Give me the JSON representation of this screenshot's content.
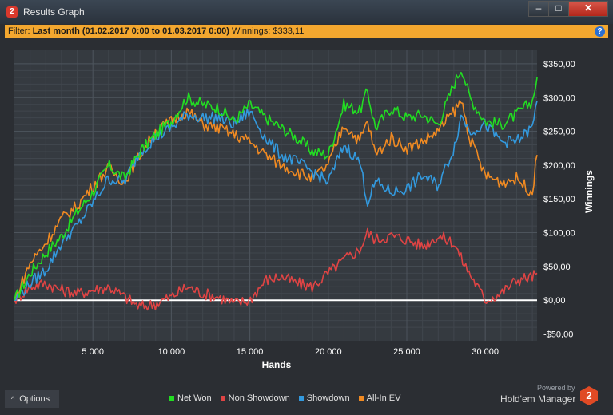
{
  "window": {
    "title": "Results Graph",
    "app_icon": "2",
    "buttons": {
      "minimize": "–",
      "maximize": "□",
      "close": "✕"
    }
  },
  "filter": {
    "prefix": "Filter:",
    "range": "Last month (01.02.2017 0:00 to 01.03.2017 0:00)",
    "winnings": "Winnings: $333,11"
  },
  "options_label": "Options",
  "powered_by": "Powered by",
  "brand_name": "Hold'em Manager",
  "brand_logo": "2",
  "colors": {
    "net_won": "#22dd22",
    "non_showdown": "#e04444",
    "showdown": "#3399dd",
    "all_in_ev": "#f08a22",
    "zero_line": "#ffffff"
  },
  "chart_data": {
    "type": "line",
    "xlabel": "Hands",
    "ylabel": "Winnings",
    "xlim": [
      0,
      33300
    ],
    "ylim": [
      -60,
      370
    ],
    "x_ticks": [
      5000,
      10000,
      15000,
      20000,
      25000,
      30000
    ],
    "x_tick_labels": [
      "5 000",
      "10 000",
      "15 000",
      "20 000",
      "25 000",
      "30 000"
    ],
    "y_ticks": [
      -50,
      0,
      50,
      100,
      150,
      200,
      250,
      300,
      350
    ],
    "y_tick_labels": [
      "-$50,00",
      "$0,00",
      "$50,00",
      "$100,00",
      "$150,00",
      "$200,00",
      "$250,00",
      "$300,00",
      "$350,00"
    ],
    "grid": true,
    "legend_position": "bottom",
    "x": [
      0,
      1000,
      2000,
      3000,
      4000,
      5000,
      6000,
      7000,
      8000,
      9000,
      10000,
      11000,
      12000,
      13000,
      14000,
      15000,
      16000,
      17000,
      18000,
      19000,
      20000,
      21000,
      22000,
      22500,
      23000,
      24000,
      25000,
      26000,
      27000,
      28000,
      28500,
      29000,
      30000,
      31000,
      32000,
      33000,
      33300
    ],
    "series": [
      {
        "name": "Net Won",
        "color": "#22dd22",
        "values": [
          0,
          40,
          70,
          95,
          130,
          160,
          200,
          180,
          220,
          245,
          265,
          300,
          290,
          285,
          265,
          290,
          270,
          255,
          240,
          220,
          215,
          290,
          280,
          310,
          255,
          285,
          270,
          275,
          260,
          320,
          345,
          300,
          265,
          260,
          275,
          295,
          330
        ]
      },
      {
        "name": "Non Showdown",
        "color": "#e04444",
        "values": [
          0,
          20,
          25,
          15,
          10,
          15,
          20,
          5,
          -10,
          -5,
          5,
          20,
          10,
          5,
          -5,
          0,
          30,
          35,
          25,
          20,
          40,
          60,
          75,
          100,
          90,
          95,
          90,
          80,
          95,
          85,
          60,
          40,
          0,
          10,
          30,
          35,
          40
        ]
      },
      {
        "name": "Showdown",
        "color": "#3399dd",
        "values": [
          0,
          25,
          45,
          85,
          110,
          145,
          180,
          175,
          220,
          240,
          255,
          275,
          270,
          270,
          260,
          280,
          240,
          215,
          205,
          190,
          175,
          230,
          205,
          145,
          175,
          160,
          165,
          185,
          170,
          225,
          275,
          250,
          260,
          235,
          235,
          255,
          295
        ]
      },
      {
        "name": "All-In EV",
        "color": "#f08a22",
        "values": [
          0,
          55,
          85,
          120,
          140,
          170,
          195,
          175,
          215,
          250,
          265,
          280,
          260,
          255,
          245,
          235,
          215,
          200,
          190,
          180,
          200,
          260,
          235,
          265,
          215,
          240,
          225,
          235,
          250,
          280,
          295,
          240,
          185,
          175,
          180,
          160,
          215
        ]
      }
    ]
  }
}
